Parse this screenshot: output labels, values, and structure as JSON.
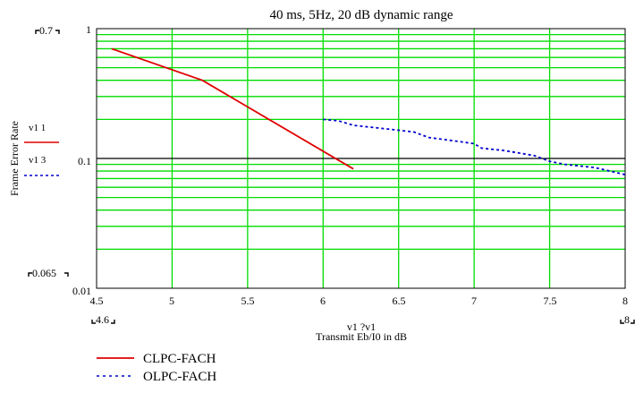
{
  "chart_data": {
    "type": "line",
    "title": "40 ms, 5Hz, 20 dB dynamic range",
    "xlabel": "Transmit Eb/I0 in dB",
    "ylabel": "Frame Error Rate",
    "xlim": [
      4.5,
      8
    ],
    "ylim": [
      0.01,
      1
    ],
    "yscale": "log",
    "grid": true,
    "grid_color": "#00dd00",
    "x_ticks": [
      "4.5",
      "5",
      "5.5",
      "6",
      "6.5",
      "7",
      "7.5",
      "8"
    ],
    "y_ticks": [
      "1",
      "0.1",
      "0.01"
    ],
    "series": [
      {
        "name": "CLPC-FACH",
        "color": "#e00000",
        "dash": "solid",
        "x": [
          4.6,
          5.2,
          6.2
        ],
        "y": [
          0.7,
          0.4,
          0.083
        ]
      },
      {
        "name": "OLPC-FACH",
        "color": "#0000cc",
        "dash": "dotted",
        "x": [
          6.0,
          6.1,
          6.2,
          6.4,
          6.6,
          6.7,
          6.9,
          7.0,
          7.05,
          7.2,
          7.3,
          7.4,
          7.5,
          7.6,
          7.8,
          7.9,
          8.0
        ],
        "y": [
          0.2,
          0.195,
          0.18,
          0.17,
          0.16,
          0.145,
          0.135,
          0.13,
          0.12,
          0.115,
          0.11,
          0.105,
          0.095,
          0.09,
          0.085,
          0.08,
          0.075
        ]
      }
    ],
    "legend": {
      "position": "bottom-left"
    },
    "annotations": {
      "y_top_marker": "0.7",
      "y_bottom_marker": "0.065",
      "x_left_marker": "4.6",
      "x_right_marker": "8",
      "x_axis_expr": "v1 ?v1",
      "series1_label": "v1 1",
      "series2_label": "v1 3"
    }
  }
}
